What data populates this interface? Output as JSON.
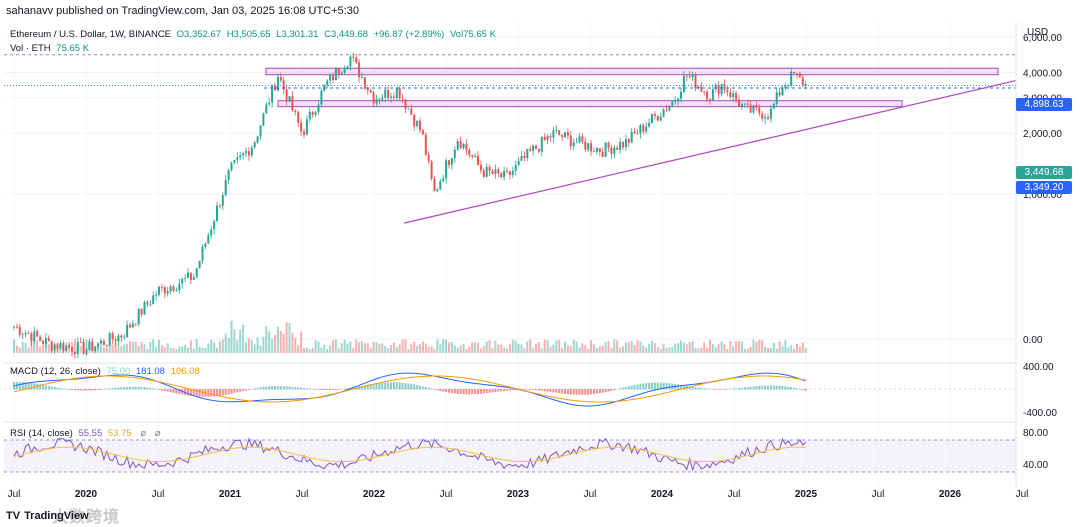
{
  "publisher_line": "sahanavv published on TradingView.com, Jan 03, 2025 16:08 UTC+5:30",
  "legend": {
    "symbol": "Ethereum / U.S. Dollar, 1W, BINANCE",
    "open": "O3,352.67",
    "high": "H3,505.65",
    "low": "L3,301.31",
    "close": "C3,449.68",
    "change": "+96.87 (+2.89%)",
    "vol": "Vol75.65 K",
    "vol_line_label": "Vol · ETH",
    "vol_line_value": "75.65 K"
  },
  "macd_legend": {
    "label": "MACD (12, 26, close)",
    "hist": "75.00",
    "macd": "181.08",
    "signal": "106.08"
  },
  "rsi_legend": {
    "label": "RSI (14, close)",
    "rsi": "55.55",
    "ma": "53.75"
  },
  "currency": "USD",
  "price_labels": {
    "high_box": "4,898.63",
    "last_box": "3,449.68",
    "level_box": "3,349.20"
  },
  "footer": {
    "logo": "TradingView",
    "watermark": "大数跨境"
  },
  "colors": {
    "up": "#26a69a",
    "down": "#ef5350",
    "zone_fill": "rgba(225,190,231,0.45)",
    "zone_stroke": "#b045c8",
    "trendline": "#b045c8",
    "macd_line": "#2962ff",
    "signal_line": "#ff9800",
    "rsi_line": "#7e57c2",
    "rsi_ma": "#f5c242"
  },
  "chart_data": {
    "type": "candlestick",
    "title": "Ethereum / U.S. Dollar, 1W, BINANCE",
    "price_axis": {
      "ticks": [
        "6,000.00",
        "4,000.00",
        "3,000.00",
        "2,000.00",
        "1,000.00",
        "0.00"
      ],
      "tick_values": [
        6000,
        4000,
        3000,
        2000,
        1000,
        0
      ],
      "scale": "log-like",
      "range": [
        0,
        6500
      ]
    },
    "time_axis": {
      "ticks": [
        "Jul",
        "2020",
        "Jul",
        "2021",
        "Jul",
        "2022",
        "Jul",
        "2023",
        "Jul",
        "2024",
        "Jul",
        "2025",
        "Jul",
        "2026",
        "Jul"
      ]
    },
    "close_series": [
      {
        "t": "2019-07",
        "close": 220
      },
      {
        "t": "2019-10",
        "close": 180
      },
      {
        "t": "2020-01",
        "close": 170
      },
      {
        "t": "2020-04",
        "close": 200
      },
      {
        "t": "2020-07",
        "close": 330
      },
      {
        "t": "2020-10",
        "close": 390
      },
      {
        "t": "2021-01",
        "close": 1300
      },
      {
        "t": "2021-03",
        "close": 1800
      },
      {
        "t": "2021-05",
        "close": 3900
      },
      {
        "t": "2021-07",
        "close": 2000
      },
      {
        "t": "2021-09",
        "close": 3500
      },
      {
        "t": "2021-11",
        "close": 4800
      },
      {
        "t": "2022-01",
        "close": 3000
      },
      {
        "t": "2022-03",
        "close": 3300
      },
      {
        "t": "2022-05",
        "close": 2000
      },
      {
        "t": "2022-06",
        "close": 1000
      },
      {
        "t": "2022-08",
        "close": 1900
      },
      {
        "t": "2022-10",
        "close": 1300
      },
      {
        "t": "2022-12",
        "close": 1200
      },
      {
        "t": "2023-02",
        "close": 1600
      },
      {
        "t": "2023-04",
        "close": 2000
      },
      {
        "t": "2023-06",
        "close": 1800
      },
      {
        "t": "2023-08",
        "close": 1650
      },
      {
        "t": "2023-10",
        "close": 1800
      },
      {
        "t": "2023-12",
        "close": 2300
      },
      {
        "t": "2024-02",
        "close": 2900
      },
      {
        "t": "2024-03",
        "close": 3900
      },
      {
        "t": "2024-05",
        "close": 3100
      },
      {
        "t": "2024-06",
        "close": 3500
      },
      {
        "t": "2024-08",
        "close": 2600
      },
      {
        "t": "2024-10",
        "close": 2500
      },
      {
        "t": "2024-11",
        "close": 3400
      },
      {
        "t": "2024-12",
        "close": 3900
      },
      {
        "t": "2025-01",
        "close": 3449.68
      }
    ],
    "levels": {
      "ath_dashed": 4898.63,
      "current_dashed": 3449.68,
      "level_dashed": 3349.2
    },
    "zones": [
      {
        "name": "resistance",
        "from": 3900,
        "to": 4200,
        "start": "2021-04",
        "end": "2026-05"
      },
      {
        "name": "support",
        "from": 2750,
        "to": 2900,
        "start": "2021-05",
        "end": "2025-09"
      }
    ],
    "trendline": {
      "from": {
        "t": "2022-06",
        "price": 900
      },
      "to": {
        "t": "2026-05",
        "price": 3650
      }
    },
    "macd_axis": {
      "ticks": [
        "400.00",
        "-400.00"
      ],
      "tick_values": [
        400,
        -400
      ]
    },
    "rsi_axis": {
      "ticks": [
        "80.00",
        "40.00"
      ],
      "tick_values": [
        80,
        40
      ],
      "bands": [
        30,
        70
      ]
    }
  }
}
